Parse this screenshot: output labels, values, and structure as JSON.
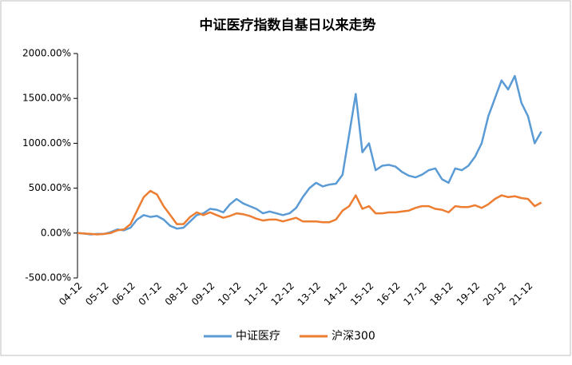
{
  "chart_data": {
    "type": "line",
    "title": "中证医疗指数自基日以来走势",
    "categories": [
      "04-12",
      null,
      null,
      null,
      "05-12",
      null,
      null,
      null,
      "06-12",
      null,
      null,
      null,
      "07-12",
      null,
      null,
      null,
      "08-12",
      null,
      null,
      null,
      "09-12",
      null,
      null,
      null,
      "10-12",
      null,
      null,
      null,
      "11-12",
      null,
      null,
      null,
      "12-12",
      null,
      null,
      null,
      "13-12",
      null,
      null,
      null,
      "14-12",
      null,
      null,
      null,
      "15-12",
      null,
      null,
      null,
      "16-12",
      null,
      null,
      null,
      "17-12",
      null,
      null,
      null,
      "18-12",
      null,
      null,
      null,
      "19-12",
      null,
      null,
      null,
      "20-12",
      null,
      null,
      null,
      "21-12",
      null,
      null
    ],
    "series": [
      {
        "name": "中证医疗",
        "color": "#5b9bd5",
        "values": [
          0,
          -5,
          -15,
          -10,
          -10,
          10,
          40,
          30,
          60,
          150,
          200,
          180,
          190,
          150,
          80,
          50,
          60,
          130,
          200,
          220,
          270,
          260,
          230,
          320,
          380,
          330,
          300,
          270,
          220,
          240,
          220,
          200,
          220,
          280,
          400,
          500,
          560,
          520,
          540,
          550,
          650,
          1100,
          1550,
          900,
          1000,
          700,
          750,
          760,
          740,
          680,
          640,
          620,
          650,
          700,
          720,
          600,
          560,
          720,
          700,
          750,
          850,
          1000,
          1300,
          1500,
          1700,
          1600,
          1750,
          1450,
          1300,
          1000,
          1130
        ]
      },
      {
        "name": "沪深300",
        "color": "#ed7d31",
        "values": [
          0,
          -5,
          -10,
          -15,
          -10,
          0,
          30,
          40,
          100,
          250,
          400,
          470,
          430,
          300,
          200,
          100,
          100,
          180,
          230,
          200,
          230,
          200,
          170,
          190,
          220,
          210,
          190,
          160,
          140,
          150,
          150,
          130,
          150,
          170,
          130,
          130,
          130,
          120,
          120,
          150,
          250,
          300,
          420,
          270,
          300,
          220,
          220,
          230,
          230,
          240,
          250,
          280,
          300,
          300,
          270,
          260,
          230,
          300,
          290,
          290,
          310,
          280,
          320,
          380,
          420,
          400,
          410,
          390,
          380,
          300,
          340
        ]
      }
    ],
    "ylim": [
      -500,
      2000
    ],
    "yticks": [
      {
        "value": -500,
        "label": "-500.00%"
      },
      {
        "value": 0,
        "label": "0.00%"
      },
      {
        "value": 500,
        "label": "500.00%"
      },
      {
        "value": 1000,
        "label": "1000.00%"
      },
      {
        "value": 1500,
        "label": "1500.00%"
      },
      {
        "value": 2000,
        "label": "2000.00%"
      }
    ],
    "legend": "bottom"
  }
}
